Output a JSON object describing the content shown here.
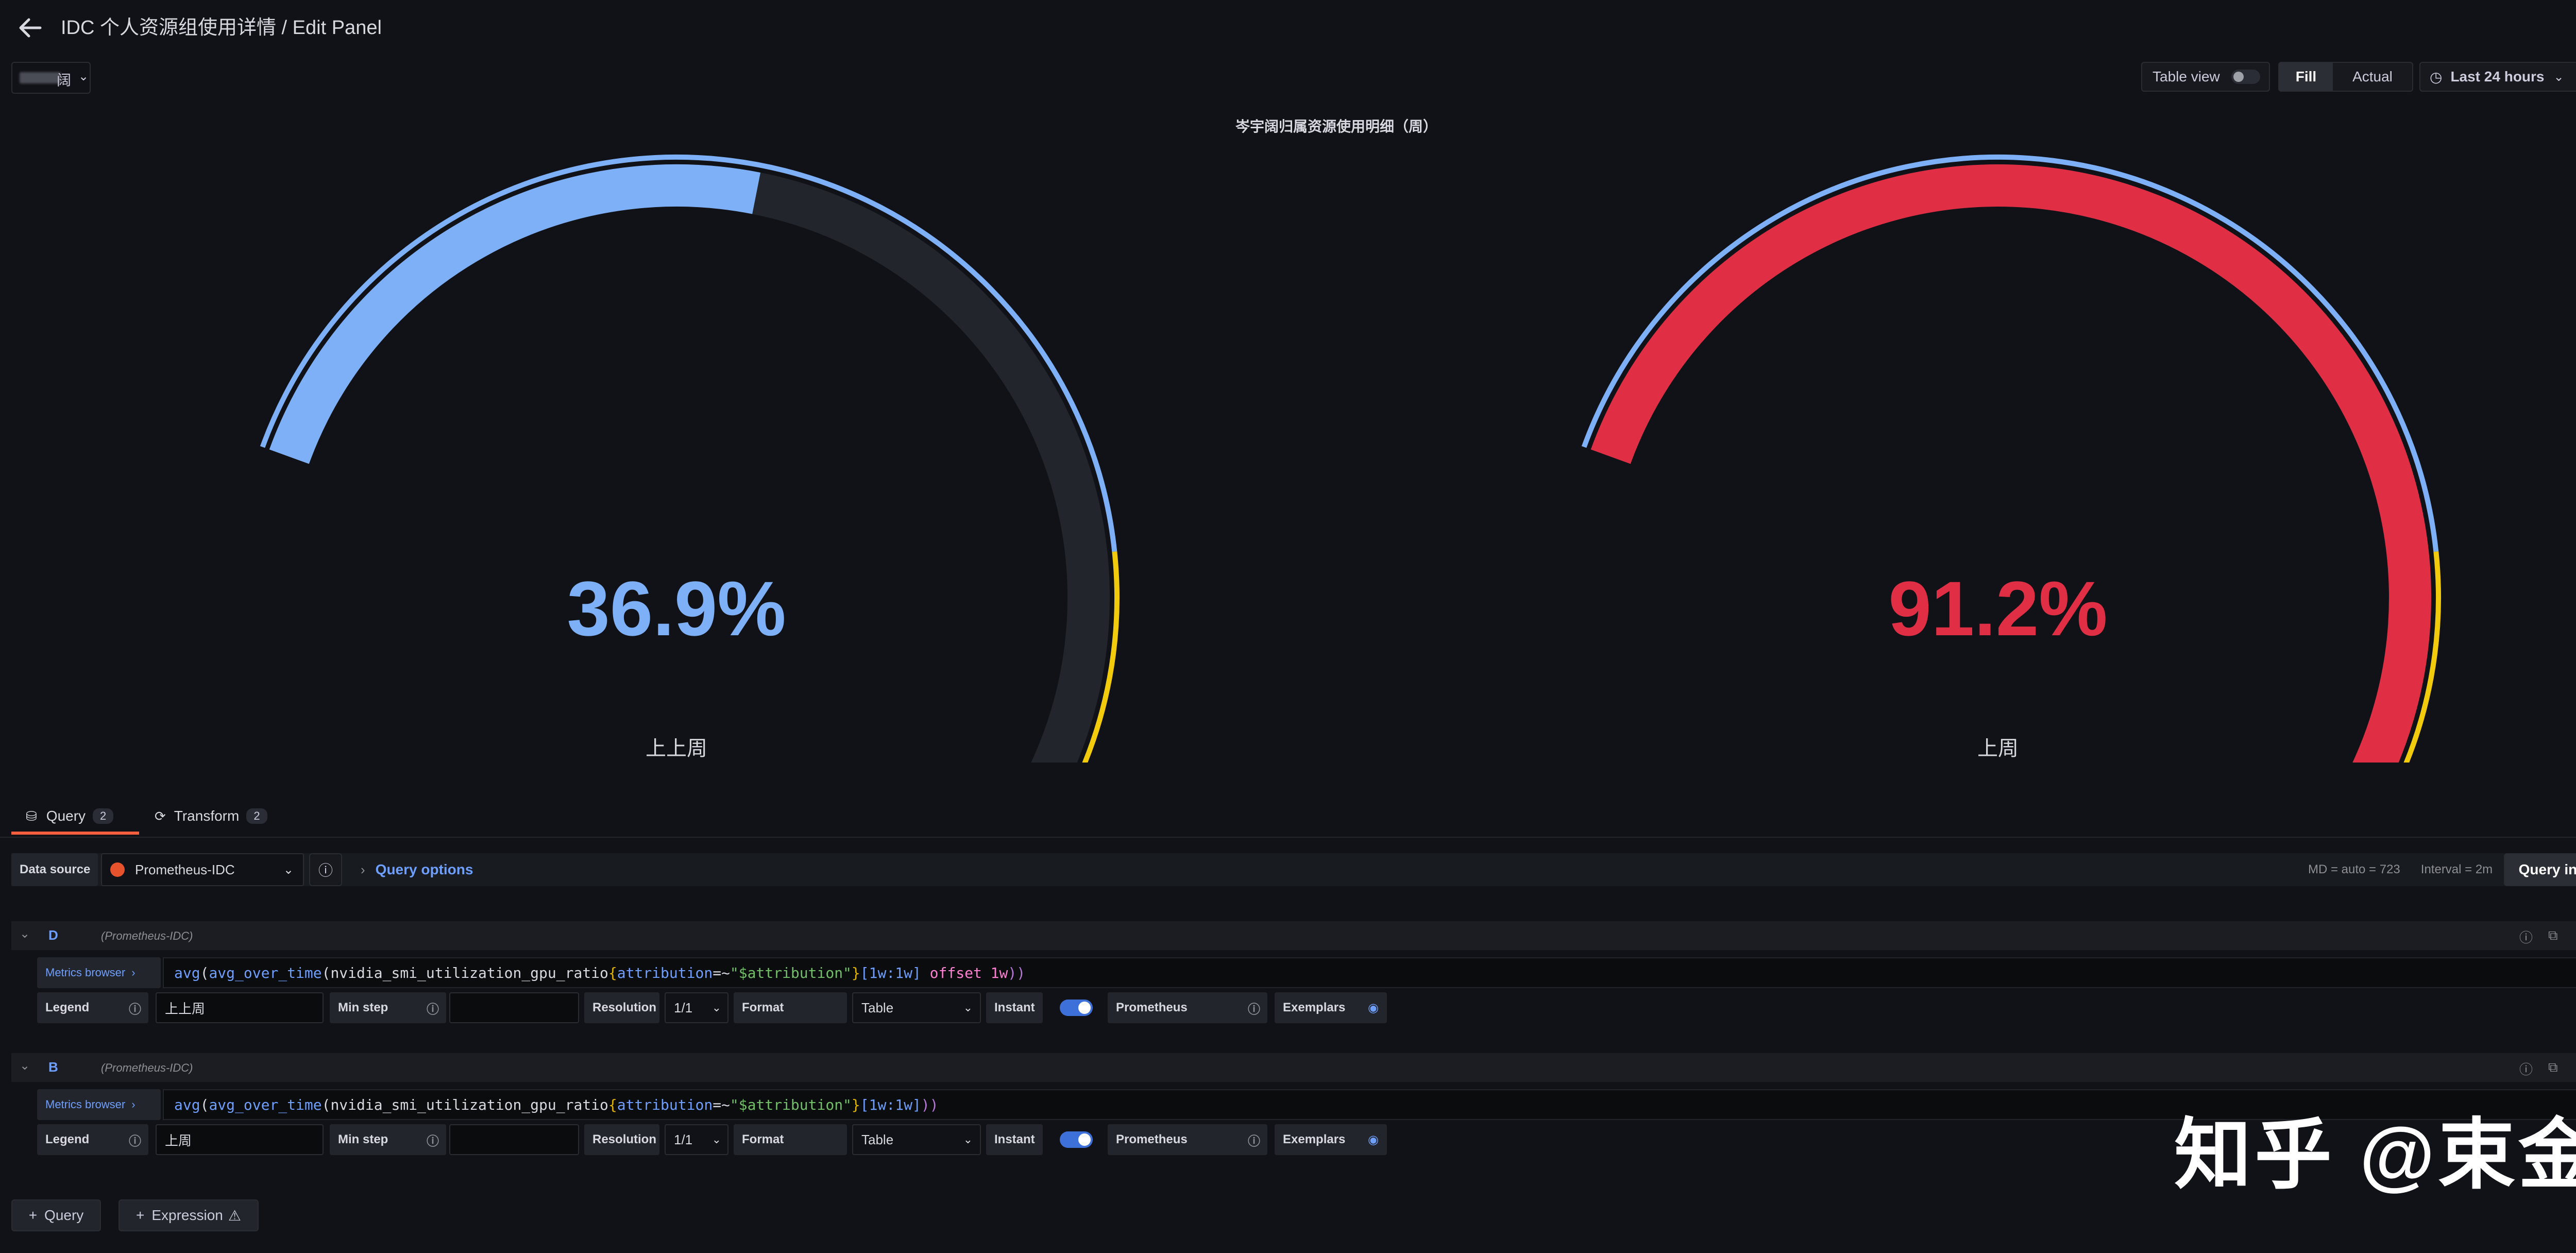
{
  "header": {
    "title": "IDC 个人资源组使用详情 / Edit Panel",
    "variable_value": "阔",
    "table_view_label": "Table view",
    "fill_label": "Fill",
    "actual_label": "Actual",
    "time_range": "Last 24 hours"
  },
  "panel": {
    "title": "岑宇阔归属资源使用明细（周）",
    "gauges": [
      {
        "value_text": "36.9%",
        "value": 36.9,
        "label": "上上周",
        "color": "#7eb0f7"
      },
      {
        "value_text": "91.2%",
        "value": 91.2,
        "label": "上周",
        "color": "#e02f44"
      }
    ],
    "colors": {
      "blue": "#7eb0f7",
      "yellow": "#f2cc0c",
      "red": "#e02f44",
      "track": "#22252b"
    }
  },
  "tabs": [
    {
      "label": "Query",
      "count": "2"
    },
    {
      "label": "Transform",
      "count": "2"
    }
  ],
  "toolbar": {
    "data_source_label": "Data source",
    "data_source_value": "Prometheus-IDC",
    "query_options": "Query options",
    "md": "MD = auto = 723",
    "interval": "Interval = 2m",
    "inspector": "Query inspector"
  },
  "queries": [
    {
      "letter": "D",
      "datasource": "(Prometheus-IDC)",
      "metrics_browser": "Metrics browser",
      "tokens": {
        "fn1": "avg",
        "p1": "(",
        "fn2": "avg_over_time",
        "p2": "(",
        "metric": "nvidia_smi_utilization_gpu_ratio",
        "b1": "{",
        "lbl": "attribution",
        "op": "=~",
        "str": "\"$attribution\"",
        "b2": "}",
        "rng": "[1w:1w]",
        "kw": " offset 1w",
        "p3": "))"
      },
      "legend_label": "Legend",
      "legend_value": "上上周",
      "min_step_label": "Min step",
      "min_step_value": "",
      "resolution_label": "Resolution",
      "resolution_value": "1/1",
      "format_label": "Format",
      "format_value": "Table",
      "instant_label": "Instant",
      "type_label": "Prometheus",
      "exemplars_label": "Exemplars"
    },
    {
      "letter": "B",
      "datasource": "(Prometheus-IDC)",
      "metrics_browser": "Metrics browser",
      "tokens": {
        "fn1": "avg",
        "p1": "(",
        "fn2": "avg_over_time",
        "p2": "(",
        "metric": "nvidia_smi_utilization_gpu_ratio",
        "b1": "{",
        "lbl": "attribution",
        "op": "=~",
        "str": "\"$attribution\"",
        "b2": "}",
        "rng": "[1w:1w]",
        "kw": "",
        "p3": "))"
      },
      "legend_label": "Legend",
      "legend_value": "上周",
      "min_step_label": "Min step",
      "min_step_value": "",
      "resolution_label": "Resolution",
      "resolution_value": "1/1",
      "format_label": "Format",
      "format_value": "Table",
      "instant_label": "Instant",
      "type_label": "Prometheus",
      "exemplars_label": "Exemplars"
    }
  ],
  "footer": {
    "add_query": "Query",
    "add_expression": "Expression"
  },
  "watermark": "知乎 @束金"
}
